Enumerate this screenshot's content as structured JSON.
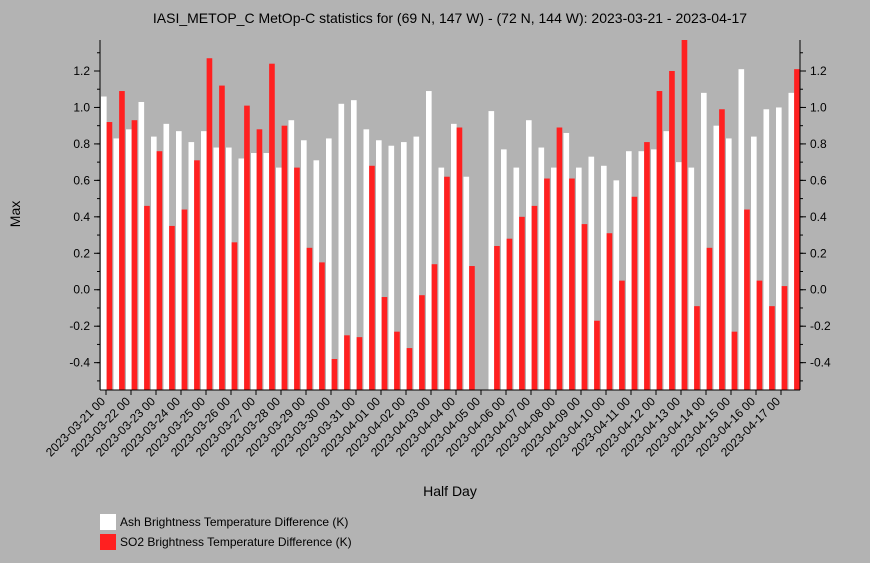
{
  "colors": {
    "background": "#b3b3b3",
    "ash": "#ffffff",
    "so2": "#ff2020"
  },
  "chart_data": {
    "type": "bar",
    "title": "IASI_METOP_C MetOp-C statistics for (69 N, 147 W) - (72 N, 144 W): 2023-03-21 - 2023-04-17",
    "xlabel": "Half Day",
    "ylabel": "Max",
    "ylim": [
      -0.55,
      1.37
    ],
    "yticks": [
      -0.4,
      -0.2,
      0.0,
      0.2,
      0.4,
      0.6,
      0.8,
      1.0,
      1.2
    ],
    "yticklabels": [
      "-0.4",
      "-0.2",
      "0.0",
      "0.2",
      "0.4",
      "0.6",
      "0.8",
      "1.0",
      "1.2"
    ],
    "xticks": [
      "2023-03-21 00",
      "2023-03-22 00",
      "2023-03-23 00",
      "2023-03-24 00",
      "2023-03-25 00",
      "2023-03-26 00",
      "2023-03-27 00",
      "2023-03-28 00",
      "2023-03-29 00",
      "2023-03-30 00",
      "2023-03-31 00",
      "2023-04-01 00",
      "2023-04-02 00",
      "2023-04-03 00",
      "2023-04-04 00",
      "2023-04-05 00",
      "2023-04-06 00",
      "2023-04-07 00",
      "2023-04-08 00",
      "2023-04-09 00",
      "2023-04-10 00",
      "2023-04-11 00",
      "2023-04-12 00",
      "2023-04-13 00",
      "2023-04-14 00",
      "2023-04-15 00",
      "2023-04-16 00",
      "2023-04-17 00"
    ],
    "legend_position": "bottom-left",
    "series": [
      {
        "name": "Ash Brightness Temperature Difference (K)",
        "color": "#ffffff",
        "values": [
          1.06,
          0.83,
          0.88,
          1.03,
          0.84,
          0.91,
          0.87,
          0.81,
          0.87,
          0.78,
          0.78,
          0.72,
          0.75,
          0.75,
          0.67,
          0.93,
          0.82,
          0.71,
          0.83,
          1.02,
          1.04,
          0.88,
          0.82,
          0.79,
          0.81,
          0.84,
          1.09,
          0.67,
          0.91,
          0.62,
          null,
          0.98,
          0.77,
          0.67,
          0.93,
          0.78,
          0.67,
          0.86,
          0.67,
          0.73,
          0.68,
          0.6,
          0.76,
          0.76,
          0.77,
          0.87,
          0.7,
          0.67,
          1.08,
          0.9,
          0.83,
          1.21,
          0.84,
          0.99,
          1.0,
          1.08
        ]
      },
      {
        "name": "SO2 Brightness Temperature Difference (K)",
        "color": "#ff2020",
        "values": [
          0.92,
          1.09,
          0.93,
          0.46,
          0.76,
          0.35,
          0.44,
          0.71,
          1.27,
          1.12,
          0.26,
          1.01,
          0.88,
          1.24,
          0.9,
          0.67,
          0.23,
          0.15,
          -0.38,
          -0.25,
          -0.26,
          0.68,
          -0.04,
          -0.23,
          -0.32,
          -0.03,
          0.14,
          0.62,
          0.89,
          0.13,
          null,
          0.24,
          0.28,
          0.4,
          0.46,
          0.61,
          0.89,
          0.61,
          0.36,
          -0.17,
          0.31,
          0.05,
          0.51,
          0.81,
          1.09,
          1.2,
          1.37,
          -0.09,
          0.23,
          0.99,
          -0.23,
          0.44,
          0.05,
          -0.09,
          0.02,
          1.21
        ]
      }
    ]
  }
}
